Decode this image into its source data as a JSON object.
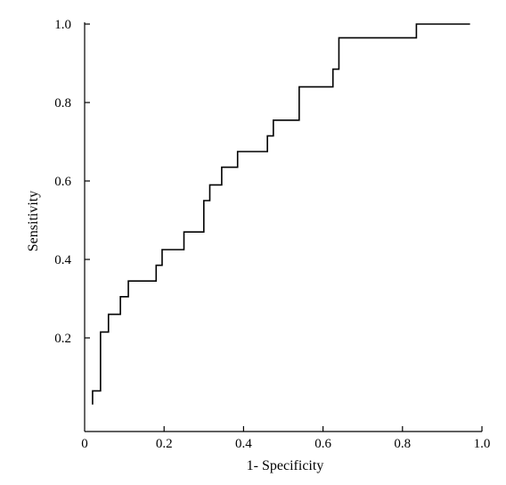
{
  "chart_data": {
    "type": "line",
    "title": "",
    "xlabel": "1- Specificity",
    "ylabel": "Sensitivity",
    "xlim": [
      0,
      1.0
    ],
    "ylim": [
      0,
      1.0
    ],
    "grid": false,
    "line_color": "#000000",
    "x_ticks": [
      {
        "value": 0,
        "label": "0"
      },
      {
        "value": 0.2,
        "label": "0.2"
      },
      {
        "value": 0.4,
        "label": "0.4"
      },
      {
        "value": 0.6,
        "label": "0.6"
      },
      {
        "value": 0.8,
        "label": "0.8"
      },
      {
        "value": 1.0,
        "label": "1.0"
      }
    ],
    "y_ticks": [
      {
        "value": 0.2,
        "label": "0.2"
      },
      {
        "value": 0.4,
        "label": "0.4"
      },
      {
        "value": 0.6,
        "label": "0.6"
      },
      {
        "value": 0.8,
        "label": "0.8"
      },
      {
        "value": 1.0,
        "label": "1.0"
      }
    ],
    "series": [
      {
        "points": [
          [
            0.02,
            0.03
          ],
          [
            0.02,
            0.065
          ],
          [
            0.04,
            0.065
          ],
          [
            0.04,
            0.215
          ],
          [
            0.06,
            0.215
          ],
          [
            0.06,
            0.26
          ],
          [
            0.09,
            0.26
          ],
          [
            0.09,
            0.305
          ],
          [
            0.11,
            0.305
          ],
          [
            0.11,
            0.345
          ],
          [
            0.18,
            0.345
          ],
          [
            0.18,
            0.385
          ],
          [
            0.195,
            0.385
          ],
          [
            0.195,
            0.425
          ],
          [
            0.25,
            0.425
          ],
          [
            0.25,
            0.47
          ],
          [
            0.3,
            0.47
          ],
          [
            0.3,
            0.55
          ],
          [
            0.315,
            0.55
          ],
          [
            0.315,
            0.59
          ],
          [
            0.345,
            0.59
          ],
          [
            0.345,
            0.635
          ],
          [
            0.385,
            0.635
          ],
          [
            0.385,
            0.675
          ],
          [
            0.46,
            0.675
          ],
          [
            0.46,
            0.715
          ],
          [
            0.475,
            0.715
          ],
          [
            0.475,
            0.755
          ],
          [
            0.54,
            0.755
          ],
          [
            0.54,
            0.84
          ],
          [
            0.625,
            0.84
          ],
          [
            0.625,
            0.885
          ],
          [
            0.64,
            0.885
          ],
          [
            0.64,
            0.965
          ],
          [
            0.835,
            0.965
          ],
          [
            0.835,
            1.0
          ],
          [
            0.97,
            1.0
          ]
        ]
      }
    ]
  }
}
